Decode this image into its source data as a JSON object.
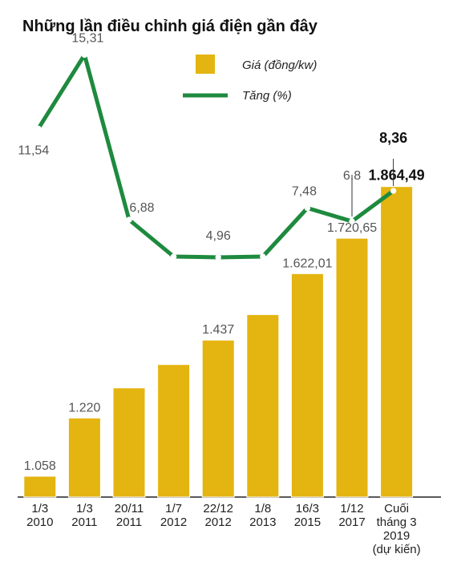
{
  "chart_data": {
    "type": "bar",
    "title": "Những lần điều chỉnh giá điện gần đây",
    "categories": [
      [
        "1/3",
        "2010"
      ],
      [
        "1/3",
        "2011"
      ],
      [
        "20/11",
        "2011"
      ],
      [
        "1/7",
        "2012"
      ],
      [
        "22/12",
        "2012"
      ],
      [
        "1/8",
        "2013"
      ],
      [
        "16/3",
        "2015"
      ],
      [
        "1/12",
        "2017"
      ],
      [
        "Cuối",
        "tháng 3",
        "2019",
        "(dự kiến)"
      ]
    ],
    "series": [
      {
        "name": "Giá (đồng/kw)",
        "type": "bar",
        "values": [
          1058,
          1220,
          1304,
          1369,
          1437,
          1508,
          1622.01,
          1720.65,
          1864.49
        ],
        "labels": [
          "1.058",
          "1.220",
          "",
          "",
          "1.437",
          "",
          "1.622,01",
          "1.720,65",
          "1.864,49"
        ]
      },
      {
        "name": "Tăng (%)",
        "type": "line",
        "values": [
          11.54,
          15.31,
          6.88,
          5,
          4.96,
          5,
          7.48,
          6.8,
          8.36
        ],
        "labels": [
          "11,54",
          "15,31",
          "6,88",
          "",
          "4,96",
          "",
          "7,48",
          "6,8",
          "8,36"
        ]
      }
    ],
    "highlight_index": 8,
    "colors": {
      "bar": "#e4b410",
      "line": "#1e8a3e",
      "axis": "#222222"
    }
  }
}
